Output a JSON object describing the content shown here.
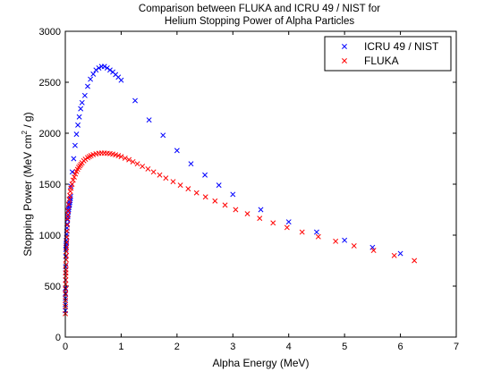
{
  "chart_data": {
    "type": "scatter",
    "title_lines": [
      "Comparison between FLUKA and ICRU 49 / NIST for",
      "Helium Stopping Power of Alpha Particles"
    ],
    "xlabel": "Alpha Energy (MeV)",
    "ylabel_main": "Stopping Power (MeV cm",
    "ylabel_sup": "2",
    "ylabel_tail": " / g)",
    "xlim": [
      0,
      7
    ],
    "ylim": [
      0,
      3000
    ],
    "xticks": [
      0,
      1,
      2,
      3,
      4,
      5,
      6,
      7
    ],
    "yticks": [
      0,
      500,
      1000,
      1500,
      2000,
      2500,
      3000
    ],
    "grid": false,
    "legend_position": "top-right",
    "marker": "x",
    "series": [
      {
        "name": "ICRU 49 / NIST",
        "color": "#0000ff",
        "x": [
          0.001,
          0.0015,
          0.002,
          0.0025,
          0.003,
          0.004,
          0.005,
          0.006,
          0.008,
          0.01,
          0.0125,
          0.015,
          0.0175,
          0.02,
          0.0225,
          0.025,
          0.0275,
          0.03,
          0.035,
          0.04,
          0.045,
          0.05,
          0.055,
          0.06,
          0.065,
          0.07,
          0.075,
          0.08,
          0.085,
          0.09,
          0.095,
          0.1,
          0.125,
          0.15,
          0.175,
          0.2,
          0.225,
          0.25,
          0.275,
          0.3,
          0.35,
          0.4,
          0.45,
          0.5,
          0.55,
          0.6,
          0.65,
          0.7,
          0.75,
          0.8,
          0.85,
          0.9,
          0.95,
          1.0,
          1.25,
          1.5,
          1.75,
          2.0,
          2.25,
          2.5,
          2.75,
          3.0,
          3.5,
          4.0,
          4.5,
          5.0,
          5.5,
          6.0
        ],
        "y": [
          260,
          320,
          380,
          430,
          480,
          560,
          630,
          690,
          790,
          860,
          880,
          900,
          920,
          950,
          980,
          1010,
          1040,
          1070,
          1110,
          1150,
          1180,
          1200,
          1230,
          1250,
          1270,
          1290,
          1300,
          1320,
          1340,
          1360,
          1380,
          1480,
          1620,
          1750,
          1880,
          1990,
          2080,
          2160,
          2240,
          2300,
          2370,
          2460,
          2530,
          2580,
          2620,
          2640,
          2655,
          2655,
          2640,
          2620,
          2600,
          2575,
          2550,
          2520,
          2320,
          2130,
          1980,
          1830,
          1700,
          1590,
          1490,
          1400,
          1250,
          1130,
          1030,
          950,
          880,
          820
        ]
      },
      {
        "name": "FLUKA",
        "color": "#ff0000",
        "x": [
          0.001,
          0.002,
          0.003,
          0.004,
          0.005,
          0.006,
          0.007,
          0.008,
          0.009,
          0.01,
          0.012,
          0.014,
          0.016,
          0.018,
          0.02,
          0.023,
          0.026,
          0.03,
          0.035,
          0.04,
          0.045,
          0.05,
          0.06,
          0.07,
          0.08,
          0.09,
          0.1,
          0.12,
          0.14,
          0.16,
          0.18,
          0.2,
          0.22,
          0.24,
          0.26,
          0.28,
          0.3,
          0.33,
          0.36,
          0.4,
          0.43,
          0.46,
          0.5,
          0.55,
          0.6,
          0.65,
          0.7,
          0.75,
          0.8,
          0.85,
          0.9,
          0.95,
          1.0,
          1.07,
          1.14,
          1.21,
          1.29,
          1.38,
          1.48,
          1.58,
          1.69,
          1.8,
          1.93,
          2.06,
          2.2,
          2.35,
          2.51,
          2.68,
          2.86,
          3.05,
          3.26,
          3.48,
          3.72,
          3.97,
          4.24,
          4.53,
          4.84,
          5.17,
          5.52,
          5.89,
          6.25
        ],
        "y": [
          230,
          300,
          360,
          420,
          470,
          520,
          560,
          600,
          630,
          660,
          710,
          760,
          800,
          840,
          880,
          930,
          980,
          1040,
          1100,
          1160,
          1200,
          1240,
          1300,
          1350,
          1390,
          1430,
          1460,
          1500,
          1540,
          1570,
          1600,
          1625,
          1645,
          1665,
          1680,
          1695,
          1710,
          1730,
          1745,
          1760,
          1770,
          1780,
          1790,
          1798,
          1803,
          1805,
          1805,
          1803,
          1800,
          1795,
          1788,
          1780,
          1770,
          1755,
          1740,
          1720,
          1700,
          1675,
          1650,
          1620,
          1590,
          1560,
          1525,
          1490,
          1455,
          1415,
          1375,
          1335,
          1295,
          1250,
          1210,
          1165,
          1120,
          1075,
          1030,
          985,
          940,
          895,
          850,
          800,
          750
        ]
      }
    ]
  }
}
